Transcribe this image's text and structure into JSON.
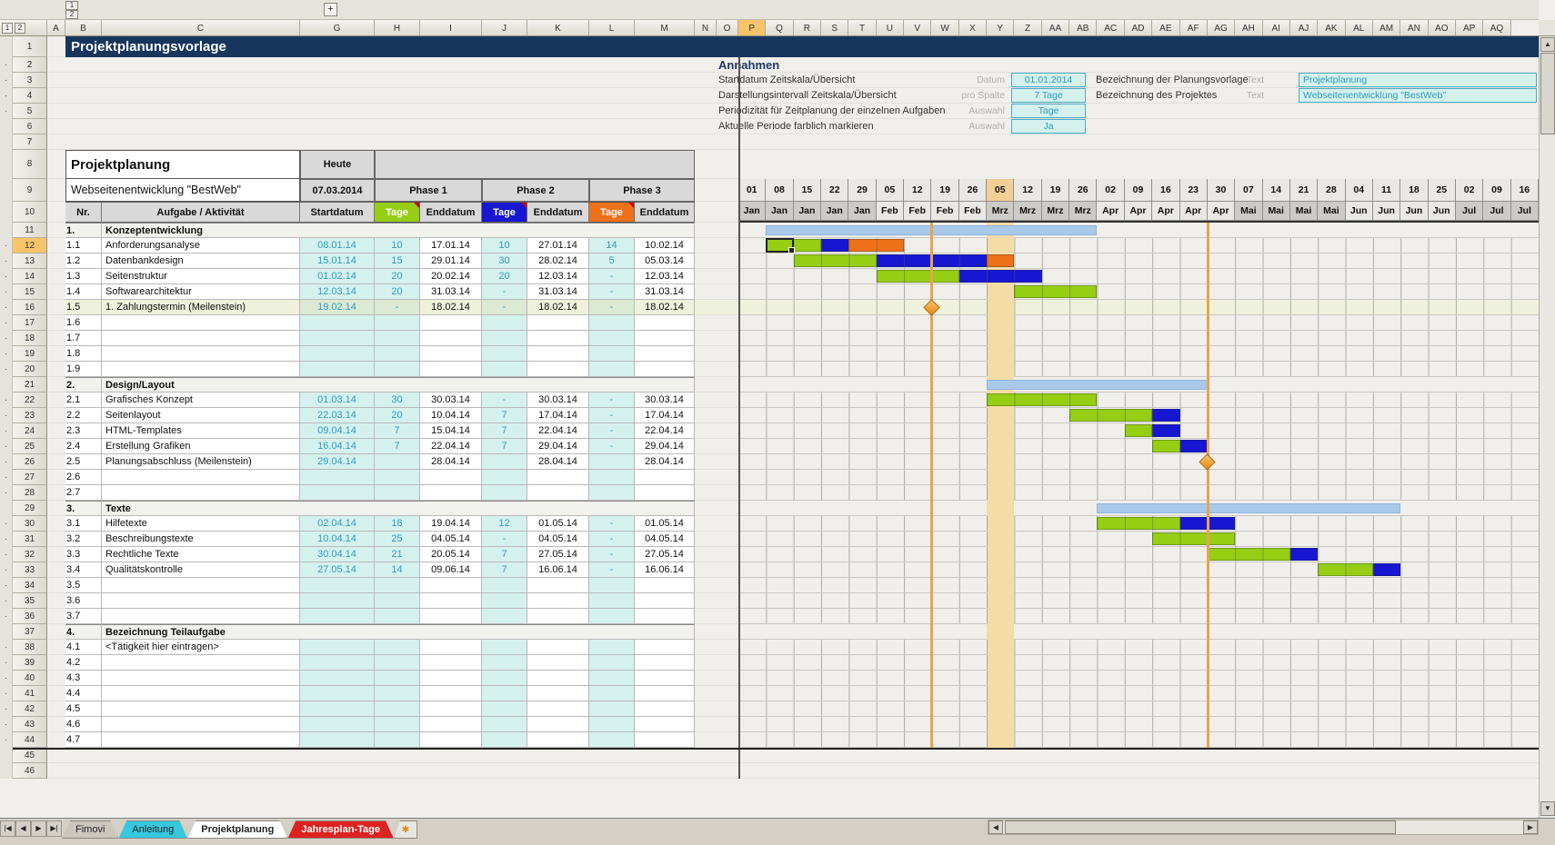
{
  "title_row": "Projektplanungsvorlage",
  "chrome": {
    "outline_plus": "+",
    "outline_col_levels": [
      "1",
      "2"
    ],
    "outline_row_levels": [
      "1",
      "2"
    ],
    "columns_left": [
      "A",
      "B",
      "C",
      "G",
      "H",
      "I",
      "J",
      "K",
      "L",
      "M",
      "N",
      "O"
    ],
    "columns_right": [
      "P",
      "Q",
      "R",
      "S",
      "T",
      "U",
      "V",
      "W",
      "X",
      "Y",
      "Z",
      "AA",
      "AB",
      "AC",
      "AD",
      "AE",
      "AF",
      "AG",
      "AH",
      "AI",
      "AJ",
      "AK",
      "AL",
      "AM",
      "AN",
      "AO",
      "AP",
      "AQ"
    ],
    "selected_column": "P",
    "selected_row": "12",
    "row_numbers": [
      "1",
      "2",
      "3",
      "4",
      "5",
      "6",
      "7",
      "8",
      "9",
      "10",
      "11",
      "12",
      "13",
      "14",
      "15",
      "16",
      "17",
      "18",
      "19",
      "20",
      "21",
      "22",
      "23",
      "24",
      "25",
      "26",
      "27",
      "28",
      "29",
      "30",
      "31",
      "32",
      "33",
      "34",
      "35",
      "36",
      "37",
      "38",
      "39",
      "40",
      "41",
      "42",
      "43",
      "44",
      "45",
      "46"
    ],
    "nav_arrows": [
      "|◀",
      "◀",
      "▶",
      "▶|"
    ],
    "tabs": [
      {
        "label": "Fimovi",
        "style": "plain"
      },
      {
        "label": "Anleitung",
        "style": "cyan"
      },
      {
        "label": "Projektplanung",
        "style": "active"
      },
      {
        "label": "Jahresplan-Tage",
        "style": "red"
      }
    ],
    "scroll_up": "▲",
    "scroll_down": "▼",
    "scroll_left": "◀",
    "scroll_right": "▶"
  },
  "annahmen": {
    "heading": "Annahmen",
    "items": [
      {
        "label": "Startdatum Zeitskala/Übersicht",
        "type": "Datum",
        "value": "01.01.2014"
      },
      {
        "label": "Darstellungsintervall Zeitskala/Übersicht",
        "type": "pro Spalte",
        "value": "7 Tage"
      },
      {
        "label": "Periodizität für Zeitplanung der einzelnen Aufgaben",
        "type": "Auswahl",
        "value": "Tage"
      },
      {
        "label": "Aktuelle Periode farblich markieren",
        "type": "Auswahl",
        "value": "Ja"
      }
    ],
    "items_right": [
      {
        "label": "Bezeichnung der Planungsvorlage",
        "type": "Text",
        "value": "Projektplanung"
      },
      {
        "label": "Bezeichnung des Projektes",
        "type": "Text",
        "value": "Webseitenentwicklung \"BestWeb\""
      }
    ]
  },
  "plan": {
    "title": "Projektplanung",
    "subtitle": "Webseitenentwicklung \"BestWeb\"",
    "heute_label": "Heute",
    "heute_date": "07.03.2014",
    "phases": [
      "Phase 1",
      "Phase 2",
      "Phase 3"
    ],
    "headers": {
      "nr": "Nr.",
      "task": "Aufgabe / Aktivität",
      "start": "Startdatum",
      "tage": "Tage",
      "ende": "Enddatum"
    },
    "sections": [
      {
        "nr": "1.",
        "name": "Konzeptentwicklung",
        "rows": [
          {
            "nr": "1.1",
            "name": "Anforderungsanalyse",
            "start": "08.01.14",
            "t1": "10",
            "e1": "17.01.14",
            "t2": "10",
            "e2": "27.01.14",
            "t3": "14",
            "e3": "10.02.14"
          },
          {
            "nr": "1.2",
            "name": "Datenbankdesign",
            "start": "15.01.14",
            "t1": "15",
            "e1": "29.01.14",
            "t2": "30",
            "e2": "28.02.14",
            "t3": "5",
            "e3": "05.03.14"
          },
          {
            "nr": "1.3",
            "name": "Seitenstruktur",
            "start": "01.02.14",
            "t1": "20",
            "e1": "20.02.14",
            "t2": "20",
            "e2": "12.03.14",
            "t3": "-",
            "e3": "12.03.14"
          },
          {
            "nr": "1.4",
            "name": "Softwarearchitektur",
            "start": "12.03.14",
            "t1": "20",
            "e1": "31.03.14",
            "t2": "-",
            "e2": "31.03.14",
            "t3": "-",
            "e3": "31.03.14"
          },
          {
            "nr": "1.5",
            "name": "1. Zahlungstermin (Meilenstein)",
            "start": "19.02.14",
            "t1": "-",
            "e1": "18.02.14",
            "t2": "-",
            "e2": "18.02.14",
            "t3": "-",
            "e3": "18.02.14",
            "highlight": true,
            "milestone": true
          },
          {
            "nr": "1.6"
          },
          {
            "nr": "1.7"
          },
          {
            "nr": "1.8"
          },
          {
            "nr": "1.9"
          }
        ]
      },
      {
        "nr": "2.",
        "name": "Design/Layout",
        "rows": [
          {
            "nr": "2.1",
            "name": "Grafisches Konzept",
            "start": "01.03.14",
            "t1": "30",
            "e1": "30.03.14",
            "t2": "-",
            "e2": "30.03.14",
            "t3": "-",
            "e3": "30.03.14"
          },
          {
            "nr": "2.2",
            "name": "Seitenlayout",
            "start": "22.03.14",
            "t1": "20",
            "e1": "10.04.14",
            "t2": "7",
            "e2": "17.04.14",
            "t3": "-",
            "e3": "17.04.14"
          },
          {
            "nr": "2.3",
            "name": "HTML-Templates",
            "start": "09.04.14",
            "t1": "7",
            "e1": "15.04.14",
            "t2": "7",
            "e2": "22.04.14",
            "t3": "-",
            "e3": "22.04.14"
          },
          {
            "nr": "2.4",
            "name": "Erstellung Grafiken",
            "start": "16.04.14",
            "t1": "7",
            "e1": "22.04.14",
            "t2": "7",
            "e2": "29.04.14",
            "t3": "-",
            "e3": "29.04.14"
          },
          {
            "nr": "2.5",
            "name": "Planungsabschluss (Meilenstein)",
            "start": "29.04.14",
            "t1": "",
            "e1": "28.04.14",
            "t2": "",
            "e2": "28.04.14",
            "t3": "",
            "e3": "28.04.14",
            "milestone": true
          },
          {
            "nr": "2.6"
          },
          {
            "nr": "2.7"
          }
        ]
      },
      {
        "nr": "3.",
        "name": "Texte",
        "rows": [
          {
            "nr": "3.1",
            "name": "Hilfetexte",
            "start": "02.04.14",
            "t1": "18",
            "e1": "19.04.14",
            "t2": "12",
            "e2": "01.05.14",
            "t3": "-",
            "e3": "01.05.14"
          },
          {
            "nr": "3.2",
            "name": "Beschreibungstexte",
            "start": "10.04.14",
            "t1": "25",
            "e1": "04.05.14",
            "t2": "-",
            "e2": "04.05.14",
            "t3": "-",
            "e3": "04.05.14"
          },
          {
            "nr": "3.3",
            "name": "Rechtliche Texte",
            "start": "30.04.14",
            "t1": "21",
            "e1": "20.05.14",
            "t2": "7",
            "e2": "27.05.14",
            "t3": "-",
            "e3": "27.05.14"
          },
          {
            "nr": "3.4",
            "name": "Qualitätskontrolle",
            "start": "27.05.14",
            "t1": "14",
            "e1": "09.06.14",
            "t2": "7",
            "e2": "16.06.14",
            "t3": "-",
            "e3": "16.06.14"
          },
          {
            "nr": "3.5"
          },
          {
            "nr": "3.6"
          },
          {
            "nr": "3.7"
          }
        ]
      },
      {
        "nr": "4.",
        "name": "Bezeichnung Teilaufgabe",
        "rows": [
          {
            "nr": "4.1",
            "name": "<Tätigkeit hier eintragen>"
          },
          {
            "nr": "4.2"
          },
          {
            "nr": "4.3"
          },
          {
            "nr": "4.4"
          },
          {
            "nr": "4.5"
          },
          {
            "nr": "4.6"
          },
          {
            "nr": "4.7"
          }
        ]
      }
    ]
  },
  "gantt": {
    "days": [
      "01",
      "08",
      "15",
      "22",
      "29",
      "05",
      "12",
      "19",
      "26",
      "05",
      "12",
      "19",
      "26",
      "02",
      "09",
      "16",
      "23",
      "30",
      "07",
      "14",
      "21",
      "28",
      "04",
      "11",
      "18",
      "25",
      "02",
      "09",
      "16"
    ],
    "months": [
      "Jan",
      "Jan",
      "Jan",
      "Jan",
      "Jan",
      "Feb",
      "Feb",
      "Feb",
      "Feb",
      "Mrz",
      "Mrz",
      "Mrz",
      "Mrz",
      "Apr",
      "Apr",
      "Apr",
      "Apr",
      "Apr",
      "Mai",
      "Mai",
      "Mai",
      "Mai",
      "Jun",
      "Jun",
      "Jun",
      "Jun",
      "Jul",
      "Jul",
      "Jul"
    ],
    "dark_months": [
      "Jan",
      "Mrz",
      "Mai",
      "Jul"
    ],
    "current_week_col": 9,
    "summaries": [
      {
        "section": "1.",
        "from": 1,
        "to": 12
      },
      {
        "section": "2.",
        "from": 9,
        "to": 16
      },
      {
        "section": "3.",
        "from": 13,
        "to": 23
      }
    ],
    "bars": {
      "1.1": [
        [
          "p1",
          1,
          2
        ],
        [
          "p2",
          3,
          3
        ],
        [
          "p3",
          4,
          5
        ]
      ],
      "1.2": [
        [
          "p1",
          2,
          4
        ],
        [
          "p2",
          5,
          8
        ],
        [
          "p3",
          9,
          9
        ]
      ],
      "1.3": [
        [
          "p1",
          5,
          7
        ],
        [
          "p2",
          8,
          10
        ]
      ],
      "1.4": [
        [
          "p1",
          10,
          12
        ]
      ],
      "2.1": [
        [
          "p1",
          9,
          12
        ]
      ],
      "2.2": [
        [
          "p1",
          12,
          14
        ],
        [
          "p2",
          15,
          15
        ]
      ],
      "2.3": [
        [
          "p1",
          14,
          14
        ],
        [
          "p2",
          15,
          15
        ]
      ],
      "2.4": [
        [
          "p1",
          15,
          15
        ],
        [
          "p2",
          16,
          16
        ]
      ],
      "3.1": [
        [
          "p1",
          13,
          15
        ],
        [
          "p2",
          16,
          17
        ]
      ],
      "3.2": [
        [
          "p1",
          15,
          17
        ]
      ],
      "3.3": [
        [
          "p1",
          17,
          19
        ],
        [
          "p2",
          20,
          20
        ]
      ],
      "3.4": [
        [
          "p1",
          21,
          22
        ],
        [
          "p2",
          23,
          23
        ]
      ]
    },
    "milestones": [
      {
        "row": "1.5",
        "boundary": 7
      },
      {
        "row": "2.5",
        "boundary": 17
      }
    ],
    "selected_cell": {
      "row": "1.1",
      "col": 1
    }
  },
  "colors": {
    "navy": "#17365D",
    "p1": "#96CE14",
    "p2": "#1717D2",
    "p3": "#EE7119",
    "summary": "#A9C9EB",
    "current_week": "#F3DCA6",
    "current_week_header": "#F2CF97",
    "milestone_line": "#E9A34F",
    "input_bg": "#D5F1EE",
    "input_text": "#2D9DBF",
    "header_gray": "#D9D9D9",
    "selected_header": "#F7C46A",
    "tint_row": "#EEF2DC"
  }
}
